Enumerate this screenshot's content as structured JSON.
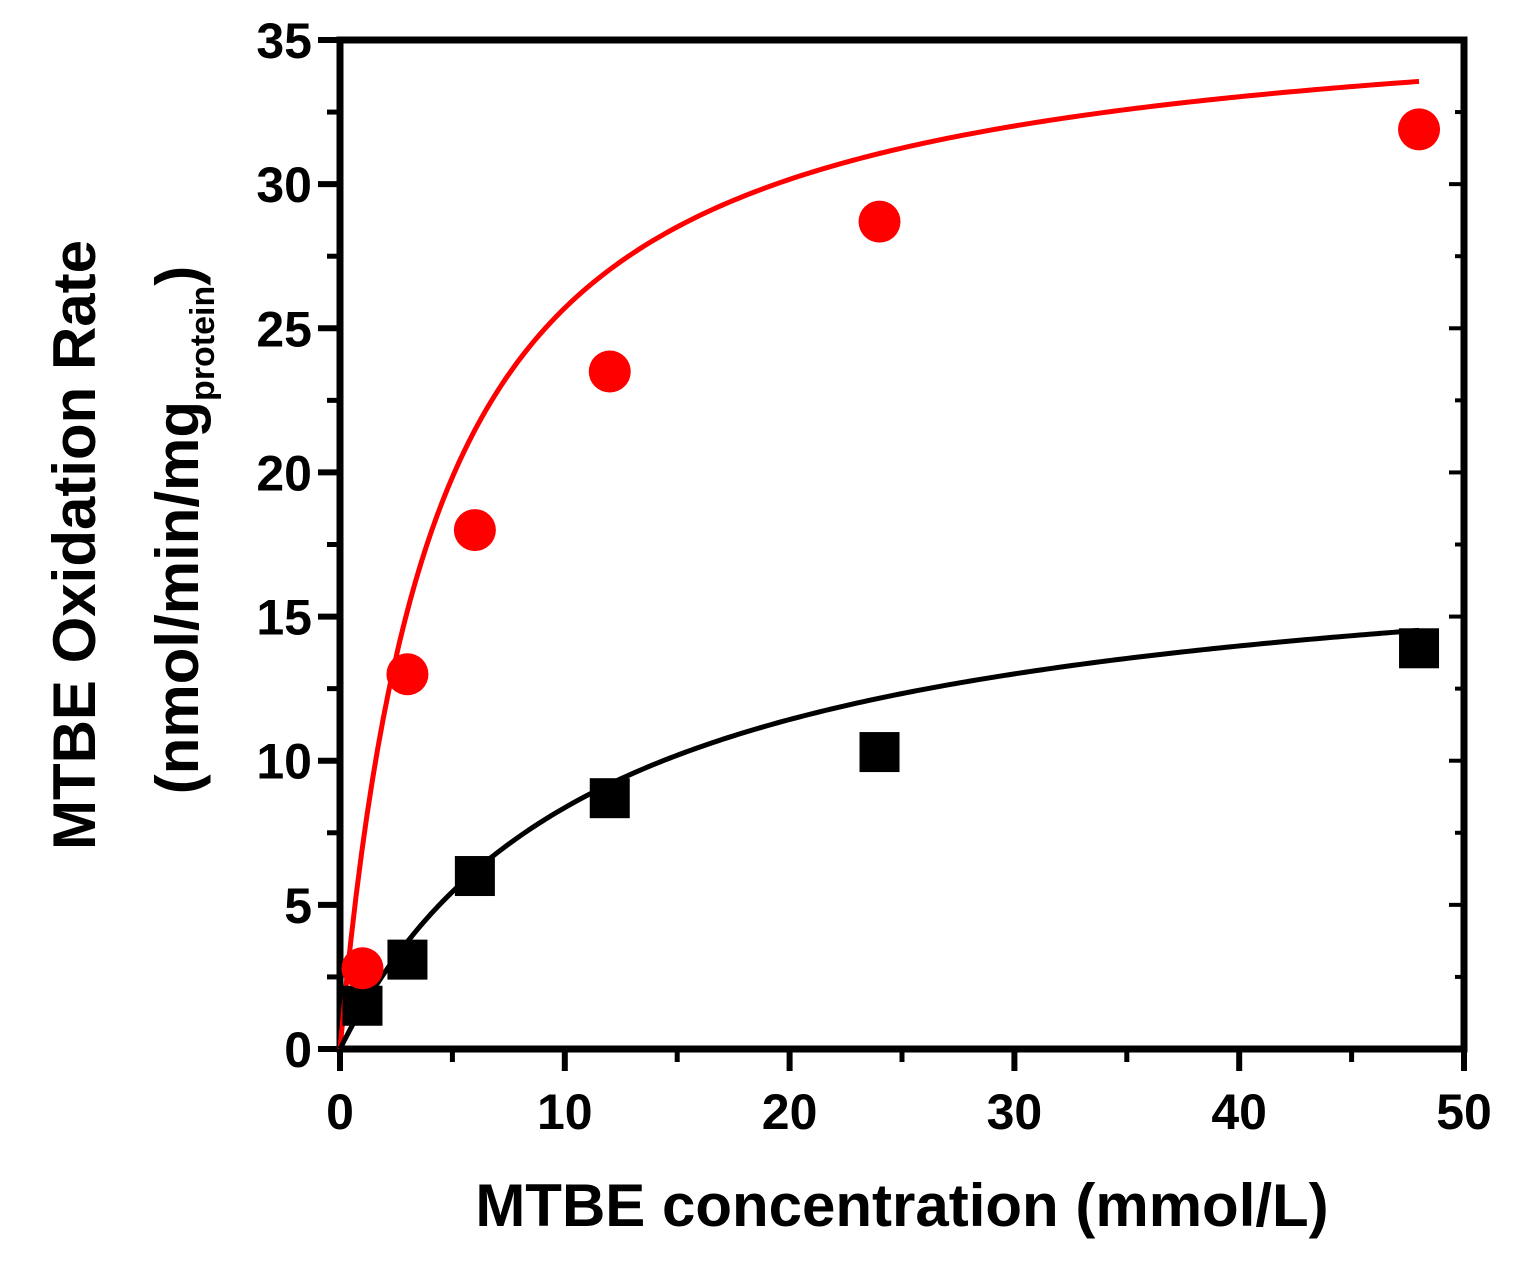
{
  "chart_data": {
    "type": "scatter",
    "title": "",
    "xlabel": "MTBE concentration (mmol/L)",
    "ylabel_line1": "MTBE Oxidation Rate",
    "ylabel_line2_prefix": "(nmol/min/mg",
    "ylabel_line2_sub": "protein",
    "ylabel_line2_suffix": ")",
    "xlim": [
      0,
      50
    ],
    "ylim": [
      0,
      35
    ],
    "x_ticks": [
      0,
      10,
      20,
      30,
      40,
      50
    ],
    "y_ticks": [
      0,
      5,
      10,
      15,
      20,
      25,
      30,
      35
    ],
    "grid": false,
    "series": [
      {
        "name": "red-circles",
        "marker": "circle",
        "color": "#ff0000",
        "x": [
          1,
          3,
          6,
          12,
          24,
          48
        ],
        "y": [
          2.8,
          13.0,
          18.0,
          23.5,
          28.7,
          31.9
        ],
        "fit": {
          "model": "michaelis-menten",
          "vmax": 36.5,
          "km": 4.2,
          "x_end": 48
        }
      },
      {
        "name": "black-squares",
        "marker": "square",
        "color": "#000000",
        "x": [
          1,
          3,
          6,
          12,
          24,
          48
        ],
        "y": [
          1.5,
          3.1,
          6.0,
          8.7,
          10.3,
          13.9
        ],
        "fit": {
          "model": "michaelis-menten",
          "vmax": 18.0,
          "km": 11.5,
          "x_end": 48
        }
      }
    ]
  }
}
